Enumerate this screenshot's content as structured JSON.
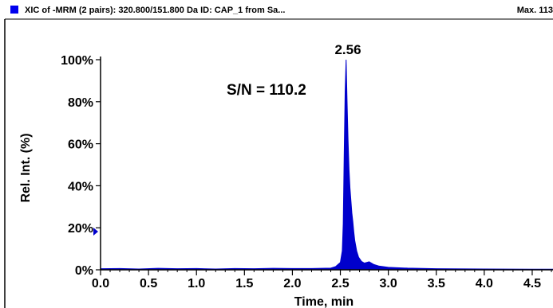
{
  "header": {
    "title": "XIC of -MRM (2 pairs): 320.800/151.800 Da ID: CAP_1 from Sa...",
    "max_label": "Max. 113"
  },
  "chart_data": {
    "type": "line",
    "xlabel": "Time, min",
    "ylabel": "Rel. Int. (%)",
    "xlim": [
      0.0,
      4.75
    ],
    "ylim": [
      0,
      100
    ],
    "x_ticks": [
      "0.0",
      "0.5",
      "1.0",
      "1.5",
      "2.0",
      "2.5",
      "3.0",
      "3.5",
      "4.0",
      "4.5"
    ],
    "y_ticks": [
      "0%",
      "20%",
      "40%",
      "60%",
      "80%",
      "100%"
    ],
    "grid": false,
    "color": "#0000cc",
    "peak_label": "2.56",
    "sn_label": "S/N = 110.2",
    "series": [
      {
        "x": [
          0.0,
          0.2,
          0.4,
          0.6,
          0.8,
          1.0,
          1.2,
          1.4,
          1.6,
          1.8,
          2.0,
          2.2,
          2.4,
          2.45,
          2.5,
          2.52,
          2.53,
          2.54,
          2.55,
          2.56,
          2.57,
          2.58,
          2.59,
          2.6,
          2.61,
          2.62,
          2.63,
          2.64,
          2.65,
          2.67,
          2.69,
          2.72,
          2.75,
          2.8,
          2.85,
          2.9,
          3.0,
          3.2,
          3.5,
          4.0,
          4.5,
          4.75
        ],
        "y": [
          0.5,
          0.6,
          0.4,
          0.7,
          0.5,
          0.6,
          0.4,
          0.6,
          0.5,
          0.7,
          0.6,
          0.6,
          0.8,
          1.5,
          3.5,
          9,
          22,
          55,
          85,
          100,
          80,
          62,
          48,
          39,
          33,
          27,
          23,
          18,
          14,
          9,
          6,
          4,
          3.2,
          3.8,
          2.5,
          1.8,
          1.2,
          0.8,
          0.5,
          0.4,
          0.3,
          0.3
        ]
      }
    ]
  }
}
